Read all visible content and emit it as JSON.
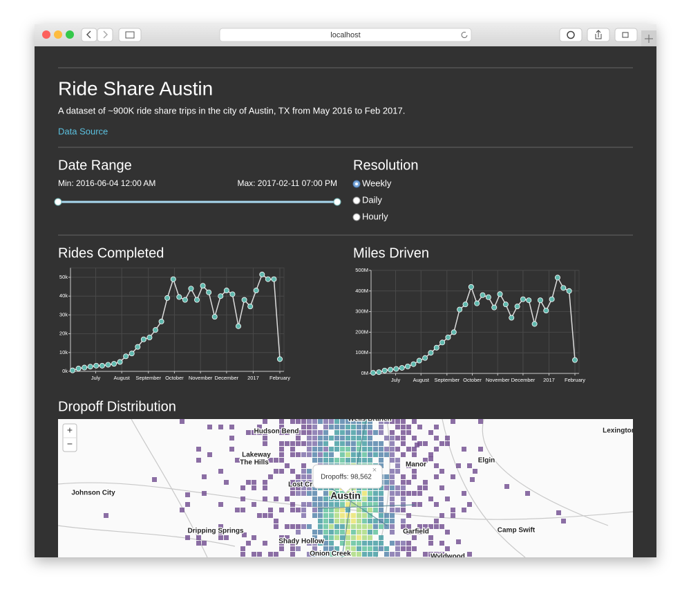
{
  "browser": {
    "url": "localhost"
  },
  "header": {
    "title": "Ride Share Austin",
    "description": "A dataset of ~900K ride share trips in the city of Austin, TX from May 2016 to Feb 2017.",
    "link": "Data Source"
  },
  "date_range": {
    "heading": "Date Range",
    "min": "Min: 2016-06-04 12:00 AM",
    "max": "Max: 2017-02-11 07:00 PM"
  },
  "resolution": {
    "heading": "Resolution",
    "options": [
      "Weekly",
      "Daily",
      "Hourly"
    ],
    "selected": 0
  },
  "chart_data": [
    {
      "type": "line",
      "title": "Rides Completed",
      "color": "#5fb8ad",
      "values": [
        500,
        1500,
        2000,
        2500,
        3000,
        3000,
        3500,
        4000,
        5000,
        8000,
        9500,
        13000,
        17000,
        18000,
        22000,
        26500,
        39000,
        49000,
        39500,
        38000,
        44000,
        38000,
        45500,
        42000,
        29000,
        40000,
        43000,
        41000,
        24000,
        38000,
        34500,
        43000,
        51500,
        49000,
        49000,
        6500
      ],
      "xlim": [
        0,
        35
      ],
      "xticks": [
        {
          "value": 3.9,
          "label": "July"
        },
        {
          "value": 8.3,
          "label": "August"
        },
        {
          "value": 12.8,
          "label": "September"
        },
        {
          "value": 17.2,
          "label": "October"
        },
        {
          "value": 21.6,
          "label": "November"
        },
        {
          "value": 26,
          "label": "December"
        },
        {
          "value": 30.5,
          "label": "2017"
        },
        {
          "value": 35,
          "label": "February"
        }
      ],
      "ylim": [
        0,
        55000
      ],
      "yticks": [
        {
          "value": 0,
          "label": "0k"
        },
        {
          "value": 10000,
          "label": "10k"
        },
        {
          "value": 20000,
          "label": "20k"
        },
        {
          "value": 30000,
          "label": "30k"
        },
        {
          "value": 40000,
          "label": "40k"
        },
        {
          "value": 50000,
          "label": "50k"
        }
      ],
      "grid": true
    },
    {
      "type": "line",
      "title": "Miles Driven",
      "color": "#5fb8ad",
      "values": [
        3000000,
        6000000,
        14000000,
        18000000,
        22000000,
        27000000,
        34000000,
        45000000,
        62000000,
        75000000,
        100000000,
        125000000,
        150000000,
        175000000,
        200000000,
        310000000,
        335000000,
        420000000,
        340000000,
        380000000,
        370000000,
        320000000,
        385000000,
        335000000,
        270000000,
        325000000,
        360000000,
        355000000,
        240000000,
        355000000,
        305000000,
        360000000,
        465000000,
        415000000,
        400000000,
        65000000
      ],
      "xlim": [
        0,
        35
      ],
      "xticks": [
        {
          "value": 3.9,
          "label": "July"
        },
        {
          "value": 8.3,
          "label": "August"
        },
        {
          "value": 12.8,
          "label": "September"
        },
        {
          "value": 17.2,
          "label": "October"
        },
        {
          "value": 21.6,
          "label": "November"
        },
        {
          "value": 26,
          "label": "December"
        },
        {
          "value": 30.5,
          "label": "2017"
        },
        {
          "value": 35,
          "label": "February"
        }
      ],
      "ylim": [
        0,
        500000000
      ],
      "yticks": [
        {
          "value": 0,
          "label": "0M"
        },
        {
          "value": 100000000,
          "label": "100M"
        },
        {
          "value": 200000000,
          "label": "200M"
        },
        {
          "value": 300000000,
          "label": "300M"
        },
        {
          "value": 400000000,
          "label": "400M"
        },
        {
          "value": 500000000,
          "label": "500M"
        }
      ],
      "grid": true
    }
  ],
  "map": {
    "heading": "Dropoff Distribution",
    "tooltip": "Dropoffs: 98,562",
    "close": "×",
    "zoom": [
      "+",
      "−"
    ],
    "places": [
      "Wells Branch",
      "Hudson Bend",
      "Lexington",
      "Lakeway",
      "The Hills",
      "Manor",
      "Elgin",
      "Lost Creek",
      "Austin",
      "Johnson City",
      "Dripping Springs",
      "Camp Swift",
      "Garfield",
      "Shady Hollow",
      "Onion Creek",
      "Wyldwood"
    ]
  }
}
